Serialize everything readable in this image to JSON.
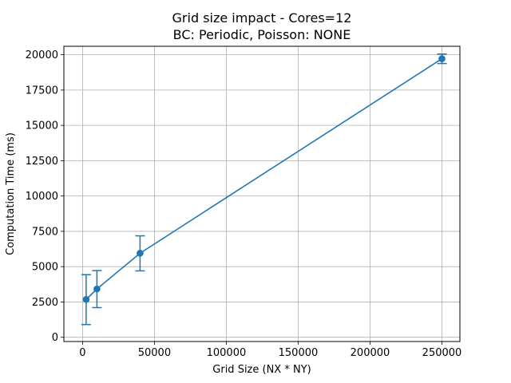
{
  "chart_data": {
    "type": "line",
    "title": "Grid size impact - Cores=12",
    "subtitle": "BC: Periodic, Poisson: NONE",
    "xlabel": "Grid Size (NX * NY)",
    "ylabel": "Computation Time (ms)",
    "xlim": [
      -13000,
      262500
    ],
    "ylim": [
      -300,
      20600
    ],
    "grid": true,
    "legend": "none",
    "color": "#1f77b4",
    "x_ticks": [
      0,
      50000,
      100000,
      150000,
      200000,
      250000
    ],
    "x_tick_labels": [
      "0",
      "50000",
      "100000",
      "150000",
      "200000",
      "250000"
    ],
    "y_ticks": [
      0,
      2500,
      5000,
      7500,
      10000,
      12500,
      15000,
      17500,
      20000
    ],
    "y_tick_labels": [
      "0",
      "2500",
      "5000",
      "7500",
      "10000",
      "12500",
      "15000",
      "17500",
      "20000"
    ],
    "series": [
      {
        "x": [
          2500,
          10000,
          40000,
          250000
        ],
        "y": [
          2680,
          3420,
          5950,
          19720
        ],
        "err_low": [
          900,
          2100,
          4700,
          19380
        ],
        "err_high": [
          4430,
          4720,
          7180,
          20050
        ]
      }
    ]
  }
}
